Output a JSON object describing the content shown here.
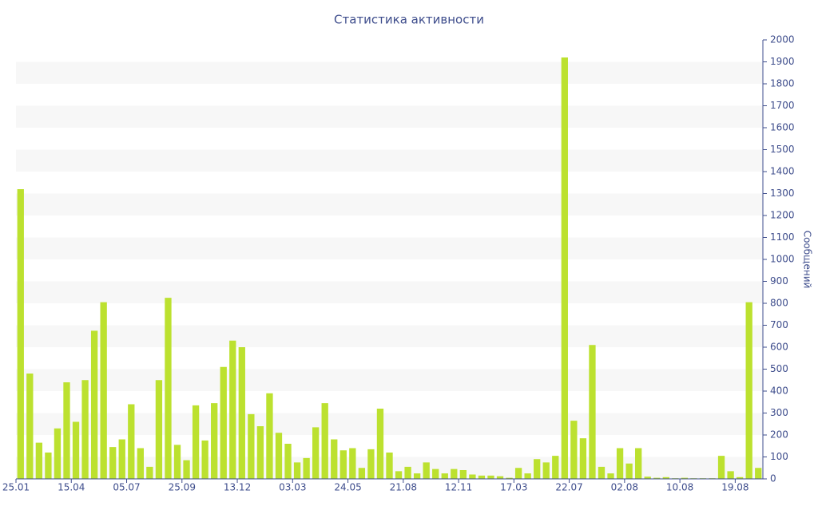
{
  "chart_data": {
    "type": "bar",
    "title": "Статистика активности",
    "y_label": "Сообщений",
    "categories": [
      "25.01",
      null,
      null,
      null,
      null,
      null,
      "15.04",
      null,
      null,
      null,
      null,
      null,
      "05.07",
      null,
      null,
      null,
      null,
      null,
      "25.09",
      null,
      null,
      null,
      null,
      null,
      "13.12",
      null,
      null,
      null,
      null,
      null,
      "03.03",
      null,
      null,
      null,
      null,
      null,
      "24.05",
      null,
      null,
      null,
      null,
      null,
      "21.08",
      null,
      null,
      null,
      null,
      null,
      "12.11",
      null,
      null,
      null,
      null,
      null,
      "17.03",
      null,
      null,
      null,
      null,
      null,
      "22.07",
      null,
      null,
      null,
      null,
      null,
      "02.08",
      null,
      null,
      null,
      null,
      null,
      "10.08",
      null,
      null,
      null,
      null,
      null,
      "19.08",
      null,
      null
    ],
    "values": [
      1320,
      480,
      165,
      120,
      230,
      440,
      260,
      450,
      675,
      805,
      145,
      180,
      340,
      140,
      55,
      450,
      825,
      155,
      85,
      335,
      175,
      345,
      510,
      630,
      600,
      295,
      240,
      390,
      210,
      160,
      75,
      95,
      235,
      345,
      180,
      130,
      140,
      50,
      135,
      320,
      120,
      35,
      55,
      25,
      75,
      45,
      25,
      45,
      40,
      20,
      15,
      15,
      12,
      5,
      50,
      25,
      90,
      75,
      105,
      1920,
      265,
      185,
      610,
      55,
      25,
      140,
      70,
      140,
      10,
      5,
      8,
      3,
      5,
      3,
      3,
      3,
      105,
      35,
      8,
      805,
      50
    ],
    "color": "#bce12f",
    "ylim": [
      0,
      2000
    ],
    "yticks": [
      0,
      100,
      200,
      300,
      400,
      500,
      600,
      700,
      800,
      900,
      1000,
      1100,
      1200,
      1300,
      1400,
      1500,
      1600,
      1700,
      1800,
      1900,
      2000
    ],
    "y_axis_side": "right",
    "grid": "bands"
  }
}
